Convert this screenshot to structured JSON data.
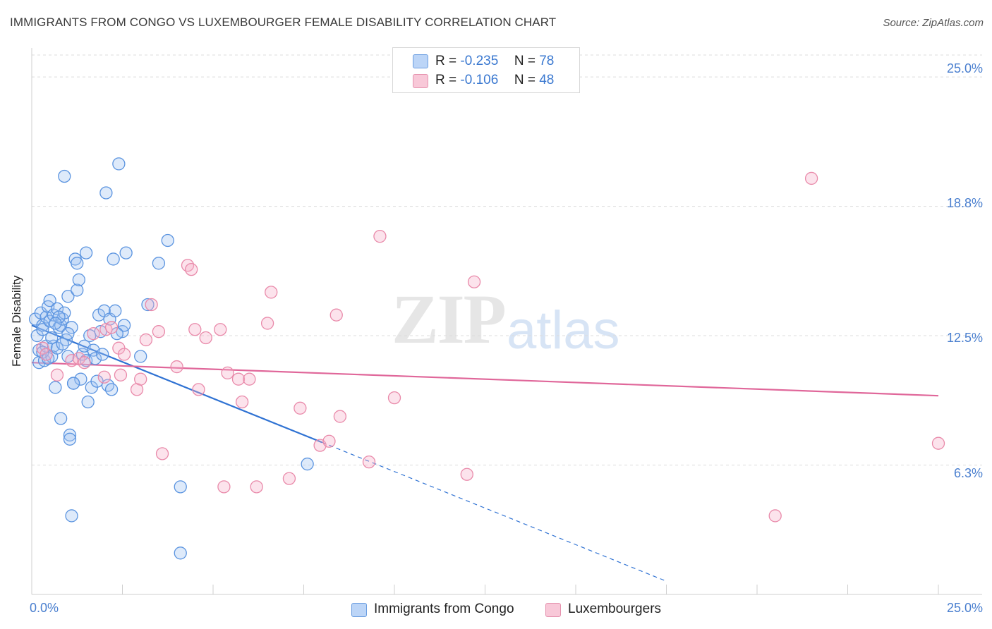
{
  "chart_data": {
    "type": "scatter",
    "title": "IMMIGRANTS FROM CONGO VS LUXEMBOURGER FEMALE DISABILITY CORRELATION CHART",
    "source": "Source: ZipAtlas.com",
    "xlabel": "",
    "ylabel": "Female Disability",
    "xlim": [
      0,
      25
    ],
    "ylim": [
      0,
      26.4
    ],
    "y_ticks": [
      "25.0%",
      "18.8%",
      "12.5%",
      "6.3%"
    ],
    "y_tick_values": [
      25.0,
      18.75,
      12.5,
      6.25
    ],
    "x_tick_left": "0.0%",
    "x_tick_right": "25.0%",
    "watermark": "ZIPatlas",
    "watermark_zip": "ZIP",
    "watermark_atlas": "atlas",
    "colors": {
      "blue": "#5b94e0",
      "pink": "#e98aaa",
      "blue_line": "#2f72d3",
      "pink_line": "#e0679a"
    },
    "stats": [
      {
        "r_label": "R =",
        "r_value": "-0.235",
        "n_label": "N =",
        "n_value": "78"
      },
      {
        "r_label": "R =",
        "r_value": "-0.106",
        "n_label": "N =",
        "n_value": "48"
      }
    ],
    "series": [
      {
        "name": "Immigrants from Congo",
        "color": "#5b94e0",
        "trend": {
          "x0": 0.0,
          "y0": 13.0,
          "x1": 8.0,
          "y1": 7.35,
          "dash_to_x": 17.5
        },
        "points": [
          [
            0.1,
            13.3
          ],
          [
            0.15,
            12.5
          ],
          [
            0.2,
            11.8
          ],
          [
            0.2,
            11.2
          ],
          [
            0.25,
            13.6
          ],
          [
            0.3,
            13.0
          ],
          [
            0.3,
            12.8
          ],
          [
            0.35,
            11.3
          ],
          [
            0.4,
            13.4
          ],
          [
            0.4,
            12.0
          ],
          [
            0.45,
            13.9
          ],
          [
            0.5,
            14.2
          ],
          [
            0.5,
            13.2
          ],
          [
            0.55,
            11.5
          ],
          [
            0.6,
            12.0
          ],
          [
            0.6,
            13.5
          ],
          [
            0.65,
            10.0
          ],
          [
            0.7,
            11.9
          ],
          [
            0.7,
            13.8
          ],
          [
            0.75,
            12.9
          ],
          [
            0.8,
            13.0
          ],
          [
            0.8,
            8.5
          ],
          [
            0.85,
            13.3
          ],
          [
            0.9,
            20.2
          ],
          [
            0.9,
            13.6
          ],
          [
            0.95,
            12.3
          ],
          [
            1.0,
            14.4
          ],
          [
            1.0,
            11.5
          ],
          [
            1.05,
            7.7
          ],
          [
            1.05,
            7.5
          ],
          [
            1.1,
            3.8
          ],
          [
            1.1,
            12.9
          ],
          [
            1.15,
            10.2
          ],
          [
            1.2,
            16.2
          ],
          [
            1.25,
            14.7
          ],
          [
            1.25,
            16.0
          ],
          [
            1.3,
            15.2
          ],
          [
            1.35,
            10.4
          ],
          [
            1.4,
            11.6
          ],
          [
            1.45,
            12.0
          ],
          [
            1.5,
            16.5
          ],
          [
            1.5,
            11.3
          ],
          [
            1.55,
            9.3
          ],
          [
            1.6,
            12.5
          ],
          [
            1.65,
            10.0
          ],
          [
            1.7,
            11.8
          ],
          [
            1.75,
            11.4
          ],
          [
            1.8,
            10.3
          ],
          [
            1.85,
            13.5
          ],
          [
            1.9,
            12.7
          ],
          [
            1.95,
            11.6
          ],
          [
            2.0,
            13.7
          ],
          [
            2.05,
            19.4
          ],
          [
            2.1,
            10.1
          ],
          [
            2.15,
            13.3
          ],
          [
            2.2,
            9.9
          ],
          [
            2.25,
            16.2
          ],
          [
            2.3,
            13.7
          ],
          [
            2.4,
            20.8
          ],
          [
            2.5,
            12.7
          ],
          [
            2.55,
            13.0
          ],
          [
            2.6,
            16.5
          ],
          [
            3.0,
            11.5
          ],
          [
            3.2,
            14.0
          ],
          [
            3.5,
            16.0
          ],
          [
            3.75,
            17.1
          ],
          [
            4.1,
            5.2
          ],
          [
            4.1,
            2.0
          ],
          [
            7.6,
            6.3
          ],
          [
            0.55,
            12.4
          ],
          [
            1.15,
            10.2
          ],
          [
            0.3,
            11.7
          ],
          [
            2.35,
            12.6
          ],
          [
            0.75,
            13.4
          ],
          [
            1.0,
            12.6
          ],
          [
            0.45,
            11.4
          ],
          [
            0.85,
            12.1
          ],
          [
            0.65,
            13.1
          ]
        ]
      },
      {
        "name": "Luxembourgers",
        "color": "#e98aaa",
        "trend": {
          "x0": 0.0,
          "y0": 11.2,
          "x1": 25.0,
          "y1": 9.6
        },
        "points": [
          [
            0.3,
            11.9
          ],
          [
            0.4,
            11.6
          ],
          [
            0.7,
            10.6
          ],
          [
            1.1,
            11.3
          ],
          [
            1.3,
            11.4
          ],
          [
            1.7,
            12.6
          ],
          [
            2.0,
            10.5
          ],
          [
            2.05,
            12.8
          ],
          [
            2.2,
            12.9
          ],
          [
            2.4,
            11.9
          ],
          [
            2.55,
            11.6
          ],
          [
            2.9,
            9.9
          ],
          [
            3.0,
            10.4
          ],
          [
            3.15,
            12.3
          ],
          [
            3.3,
            14.0
          ],
          [
            3.5,
            12.7
          ],
          [
            3.6,
            6.8
          ],
          [
            4.0,
            11.0
          ],
          [
            4.3,
            15.9
          ],
          [
            4.4,
            15.7
          ],
          [
            4.5,
            12.8
          ],
          [
            4.6,
            9.9
          ],
          [
            4.8,
            12.4
          ],
          [
            5.2,
            12.8
          ],
          [
            5.3,
            5.2
          ],
          [
            5.4,
            10.7
          ],
          [
            5.7,
            10.4
          ],
          [
            5.8,
            9.3
          ],
          [
            6.0,
            10.4
          ],
          [
            6.2,
            5.2
          ],
          [
            6.5,
            13.1
          ],
          [
            6.6,
            14.6
          ],
          [
            7.1,
            5.6
          ],
          [
            7.4,
            9.0
          ],
          [
            7.95,
            7.2
          ],
          [
            8.2,
            7.4
          ],
          [
            8.4,
            13.5
          ],
          [
            8.5,
            8.6
          ],
          [
            9.3,
            6.4
          ],
          [
            9.6,
            17.3
          ],
          [
            10.0,
            9.5
          ],
          [
            12.0,
            5.8
          ],
          [
            12.2,
            15.1
          ],
          [
            20.5,
            3.8
          ],
          [
            21.5,
            20.1
          ],
          [
            25.0,
            7.3
          ],
          [
            1.45,
            11.2
          ],
          [
            2.45,
            10.6
          ]
        ]
      }
    ]
  }
}
